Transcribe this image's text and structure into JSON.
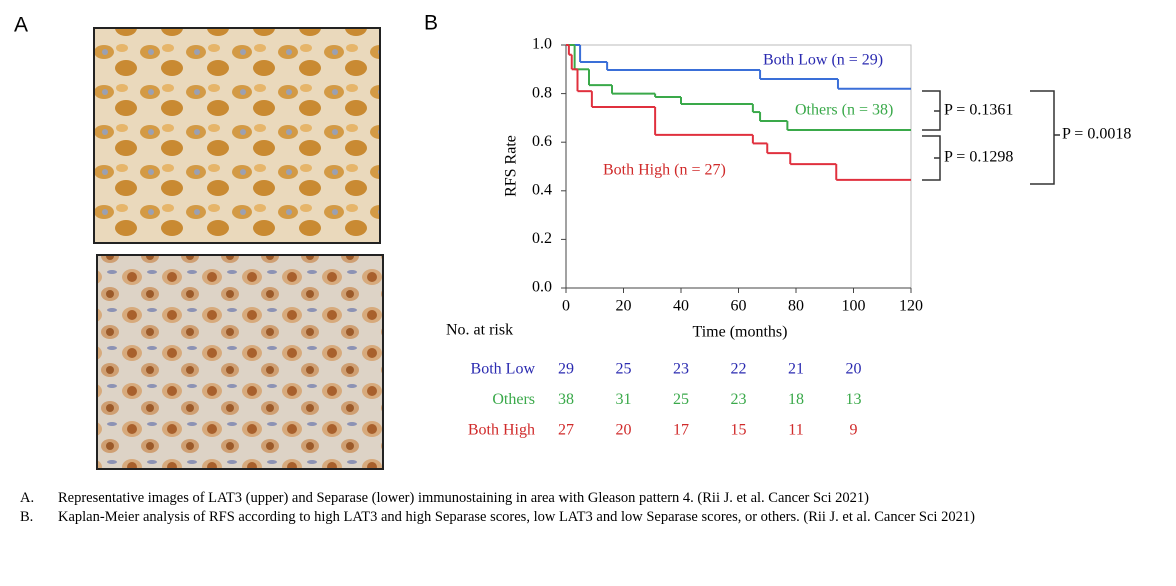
{
  "panel_labels": [
    "A",
    "B"
  ],
  "chart_data": {
    "type": "step",
    "x_label": "Time (months)",
    "y_label": "RFS Rate",
    "xlim": [
      0,
      120
    ],
    "xticks": [
      0,
      20,
      40,
      60,
      80,
      100,
      120
    ],
    "ylim": [
      0,
      1
    ],
    "yticks": [
      {
        "value": 0,
        "label": "0.0"
      },
      {
        "value": 0.2,
        "label": "0.2"
      },
      {
        "value": 0.4,
        "label": "0.4"
      },
      {
        "value": 0.6,
        "label": "0.6"
      },
      {
        "value": 0.8,
        "label": "0.8"
      },
      {
        "value": 1,
        "label": "1.0"
      }
    ],
    "series": [
      {
        "name": "Both Low (n = 29)",
        "color": "#3a6fd8",
        "label_color": "#2a2ab0",
        "x": [
          0,
          4.9,
          14.3,
          67.5,
          94.6
        ],
        "values": [
          1.0,
          0.93,
          0.897,
          0.86,
          0.82
        ]
      },
      {
        "name": "Others (n = 38)",
        "color": "#3aa94a",
        "label_color": "#3aa94a",
        "x": [
          0,
          3,
          8,
          16,
          31,
          40,
          65,
          67.5,
          77
        ],
        "values": [
          1.0,
          0.9,
          0.835,
          0.8,
          0.786,
          0.757,
          0.724,
          0.687,
          0.65
        ]
      },
      {
        "name": "Both High (n = 27)",
        "color": "#e0303e",
        "label_color": "#d02a2a",
        "x": [
          0,
          1,
          2,
          4,
          9,
          31,
          65,
          70,
          78,
          94
        ],
        "values": [
          1.0,
          0.96,
          0.9,
          0.81,
          0.745,
          0.63,
          0.595,
          0.555,
          0.51,
          0.445
        ]
      }
    ],
    "annotations": [
      "P = 0.1361",
      "P = 0.1298",
      "P = 0.0018"
    ]
  },
  "risk_table": {
    "title": "No. at risk",
    "rows": [
      {
        "name": "Both Low",
        "color": "#2a2ab0",
        "values": [
          "29",
          "25",
          "23",
          "22",
          "21",
          "20"
        ]
      },
      {
        "name": "Others",
        "color": "#3aa94a",
        "values": [
          "38",
          "31",
          "25",
          "23",
          "18",
          "13"
        ]
      },
      {
        "name": "Both High",
        "color": "#d02a2a",
        "values": [
          "27",
          "20",
          "17",
          "15",
          "11",
          "9"
        ]
      }
    ]
  },
  "captions": [
    {
      "label": "A.",
      "text": "Representative images of LAT3 (upper) and Separase (lower) immunostaining in area with Gleason pattern 4. (Rii J. et al. Cancer Sci 2021)"
    },
    {
      "label": "B.",
      "text": "Kaplan-Meier analysis of RFS according to high LAT3 and high Separase scores, low LAT3 and low Separase scores, or others. (Rii J. et al. Cancer Sci 2021)"
    }
  ]
}
